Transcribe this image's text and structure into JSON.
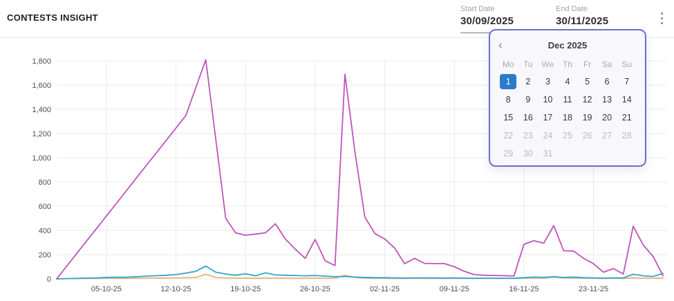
{
  "header": {
    "title": "CONTESTS INSIGHT",
    "start_date": {
      "label": "Start Date",
      "value": "30/09/2025"
    },
    "end_date": {
      "label": "End Date",
      "value": "30/11/2025"
    },
    "menu_icon": "vertical-ellipsis-icon"
  },
  "calendar": {
    "title": "Dec 2025",
    "prev_glyph": "‹",
    "prev_icon": "chevron-left-icon",
    "weekdays": [
      "Mo",
      "Tu",
      "We",
      "Th",
      "Fr",
      "Sa",
      "Su"
    ],
    "selected_day": 1,
    "first_disabled_day": 22,
    "num_days": 31,
    "colors": {
      "border": "#6b70c5",
      "background": "#f7f7fc",
      "selected_bg": "#2b7cc8",
      "selected_text": "#ffffff",
      "day_text": "#36373d",
      "disabled_text": "#babcc3"
    }
  },
  "chart_data": {
    "type": "line",
    "title": "CONTESTS INSIGHT",
    "xlabel": "",
    "ylabel": "",
    "ylim": [
      0,
      1900
    ],
    "grid": true,
    "legend": "none",
    "y_ticks": [
      0,
      200,
      400,
      600,
      800,
      1000,
      1200,
      1400,
      1600,
      1800
    ],
    "y_tick_labels": [
      "0",
      "200",
      "400",
      "600",
      "800",
      "1,000",
      "1,200",
      "1,400",
      "1,600",
      "1,800"
    ],
    "x_tick_days": [
      5,
      12,
      19,
      26,
      33,
      40,
      47,
      54
    ],
    "x_tick_labels": [
      "05-10-25",
      "12-10-25",
      "19-10-25",
      "26-10-25",
      "02-11-25",
      "09-11-25",
      "16-11-25",
      "23-11-25"
    ],
    "dates": [
      "30-09-25",
      "01-10-25",
      "02-10-25",
      "03-10-25",
      "04-10-25",
      "05-10-25",
      "06-10-25",
      "07-10-25",
      "08-10-25",
      "09-10-25",
      "10-10-25",
      "11-10-25",
      "12-10-25",
      "13-10-25",
      "14-10-25",
      "15-10-25",
      "16-10-25",
      "17-10-25",
      "18-10-25",
      "19-10-25",
      "20-10-25",
      "21-10-25",
      "22-10-25",
      "23-10-25",
      "24-10-25",
      "25-10-25",
      "26-10-25",
      "27-10-25",
      "28-10-25",
      "29-10-25",
      "30-10-25",
      "31-10-25",
      "01-11-25",
      "02-11-25",
      "03-11-25",
      "04-11-25",
      "05-11-25",
      "06-11-25",
      "07-11-25",
      "08-11-25",
      "09-11-25",
      "10-11-25",
      "11-11-25",
      "12-11-25",
      "13-11-25",
      "14-11-25",
      "15-11-25",
      "16-11-25",
      "17-11-25",
      "18-11-25",
      "19-11-25",
      "20-11-25",
      "21-11-25",
      "22-11-25",
      "23-11-25",
      "24-11-25",
      "25-11-25",
      "26-11-25",
      "27-11-25",
      "28-11-25",
      "29-11-25",
      "30-11-25"
    ],
    "series": [
      {
        "name": "magenta",
        "color": "#bf53bc",
        "values": [
          0,
          104,
          208,
          312,
          415,
          519,
          623,
          727,
          831,
          935,
          1038,
          1142,
          1246,
          1350,
          1580,
          1810,
          1155,
          500,
          380,
          360,
          370,
          380,
          455,
          330,
          245,
          170,
          325,
          150,
          110,
          1690,
          1050,
          510,
          375,
          330,
          255,
          125,
          170,
          128,
          126,
          126,
          100,
          63,
          35,
          30,
          28,
          26,
          24,
          285,
          315,
          295,
          440,
          232,
          230,
          170,
          125,
          55,
          85,
          40,
          435,
          280,
          185,
          25
        ]
      },
      {
        "name": "teal",
        "color": "#2fa5cc",
        "values": [
          0,
          2,
          4,
          6,
          8,
          12,
          13,
          14,
          18,
          22,
          26,
          30,
          35,
          48,
          62,
          105,
          55,
          40,
          30,
          42,
          25,
          50,
          32,
          30,
          28,
          25,
          28,
          22,
          18,
          20,
          15,
          12,
          10,
          10,
          8,
          6,
          8,
          8,
          8,
          7,
          8,
          6,
          5,
          5,
          5,
          5,
          5,
          10,
          15,
          12,
          18,
          12,
          15,
          10,
          8,
          6,
          8,
          8,
          38,
          25,
          20,
          45
        ]
      },
      {
        "name": "orange",
        "color": "#e6b476",
        "values": [
          0,
          2,
          3,
          3,
          4,
          5,
          5,
          5,
          6,
          6,
          7,
          7,
          8,
          9,
          12,
          38,
          12,
          8,
          6,
          6,
          5,
          6,
          6,
          6,
          5,
          5,
          6,
          5,
          5,
          30,
          12,
          6,
          5,
          5,
          4,
          4,
          5,
          4,
          4,
          4,
          5,
          4,
          4,
          4,
          4,
          4,
          4,
          6,
          8,
          7,
          15,
          8,
          7,
          6,
          5,
          4,
          5,
          4,
          8,
          6,
          5,
          8
        ]
      }
    ],
    "axis_colors": {
      "grid": "#e9e9eb",
      "tick_text": "#4d4d52"
    }
  }
}
